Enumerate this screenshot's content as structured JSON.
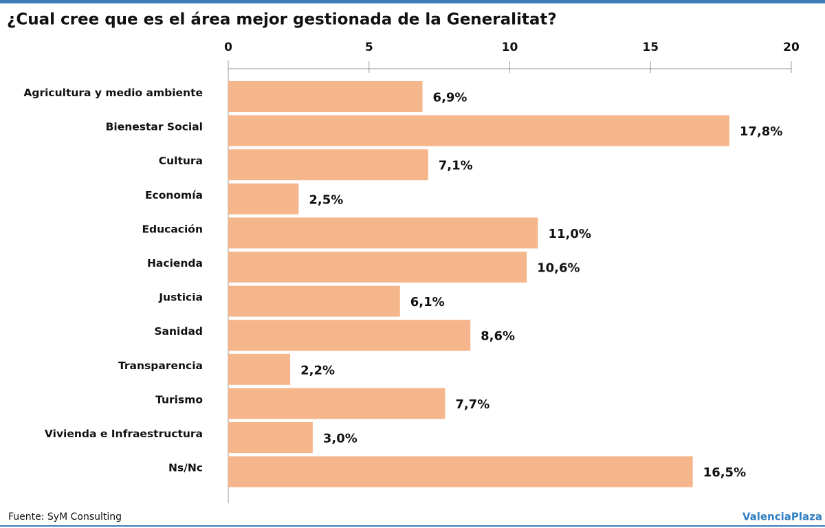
{
  "chart_data": {
    "type": "hbar",
    "title": "¿Cual cree que es el área mejor gestionada de la Generalitat?",
    "categories": [
      "Agricultura y medio ambiente",
      "Bienestar Social",
      "Cultura",
      "Economía",
      "Educación",
      "Hacienda",
      "Justicia",
      "Sanidad",
      "Transparencia",
      "Turismo",
      "Vivienda e Infraestructura",
      "Ns/Nc"
    ],
    "values": [
      6.9,
      17.8,
      7.1,
      2.5,
      11.0,
      10.6,
      6.1,
      8.6,
      2.2,
      7.7,
      3.0,
      16.5
    ],
    "value_labels": [
      "6,9%",
      "17,8%",
      "7,1%",
      "2,5%",
      "11,0%",
      "10,6%",
      "6,1%",
      "8,6%",
      "2,2%",
      "7,7%",
      "3,0%",
      "16,5%"
    ],
    "color": "#f6b68c",
    "xlim": [
      0,
      20
    ],
    "xticks": [
      0,
      5,
      10,
      15,
      20
    ],
    "source": "Fuente: SyM Consulting",
    "brand": "ValenciaPlaza"
  }
}
